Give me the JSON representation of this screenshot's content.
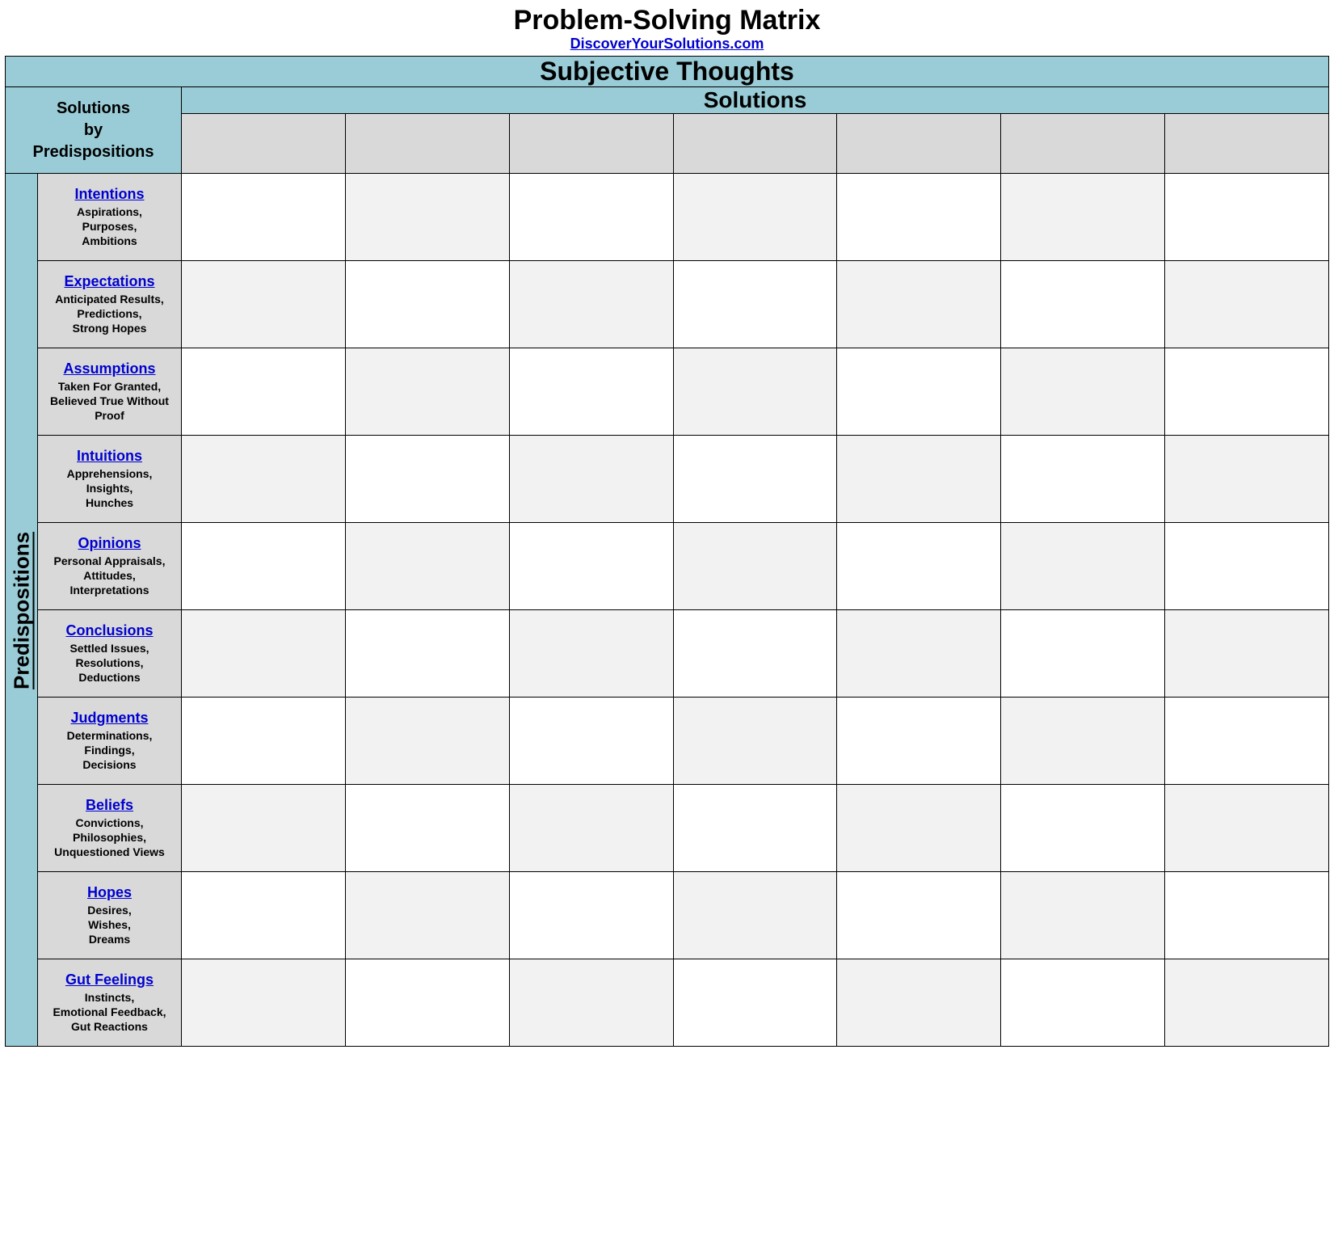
{
  "colors": {
    "header_blue": "#99ccd6",
    "header_gray": "#d9d9d9",
    "cell_light": "#ffffff",
    "cell_alt": "#f2f2f2",
    "link_color": "#0000d0",
    "border_color": "#000000"
  },
  "title": "Problem-Solving Matrix",
  "site_link": "DiscoverYourSolutions.com",
  "super_header": "Subjective Thoughts",
  "corner": {
    "line1": "Solutions",
    "line2": "by",
    "line3": "Predispositions"
  },
  "solutions_label": "Solutions",
  "side_label": "Predispositions",
  "solution_columns": [
    "",
    "",
    "",
    "",
    "",
    "",
    ""
  ],
  "rows": [
    {
      "title": "Intentions",
      "desc": "Aspirations,\nPurposes,\nAmbitions",
      "cells": [
        "",
        "",
        "",
        "",
        "",
        "",
        ""
      ]
    },
    {
      "title": "Expectations",
      "desc": "Anticipated Results,\nPredictions,\nStrong Hopes",
      "cells": [
        "",
        "",
        "",
        "",
        "",
        "",
        ""
      ]
    },
    {
      "title": "Assumptions",
      "desc": "Taken For Granted,\nBelieved True Without\nProof",
      "cells": [
        "",
        "",
        "",
        "",
        "",
        "",
        ""
      ]
    },
    {
      "title": "Intuitions",
      "desc": "Apprehensions,\nInsights,\nHunches",
      "cells": [
        "",
        "",
        "",
        "",
        "",
        "",
        ""
      ]
    },
    {
      "title": "Opinions",
      "desc": "Personal Appraisals,\nAttitudes,\nInterpretations",
      "cells": [
        "",
        "",
        "",
        "",
        "",
        "",
        ""
      ]
    },
    {
      "title": "Conclusions",
      "desc": "Settled Issues,\nResolutions,\nDeductions",
      "cells": [
        "",
        "",
        "",
        "",
        "",
        "",
        ""
      ]
    },
    {
      "title": "Judgments",
      "desc": "Determinations,\nFindings,\nDecisions",
      "cells": [
        "",
        "",
        "",
        "",
        "",
        "",
        ""
      ]
    },
    {
      "title": "Beliefs",
      "desc": "Convictions,\nPhilosophies,\nUnquestioned Views",
      "cells": [
        "",
        "",
        "",
        "",
        "",
        "",
        ""
      ]
    },
    {
      "title": "Hopes",
      "desc": "Desires,\nWishes,\nDreams",
      "cells": [
        "",
        "",
        "",
        "",
        "",
        "",
        ""
      ]
    },
    {
      "title": "Gut Feelings",
      "desc": "Instincts,\nEmotional Feedback,\nGut Reactions",
      "cells": [
        "",
        "",
        "",
        "",
        "",
        "",
        ""
      ]
    }
  ]
}
